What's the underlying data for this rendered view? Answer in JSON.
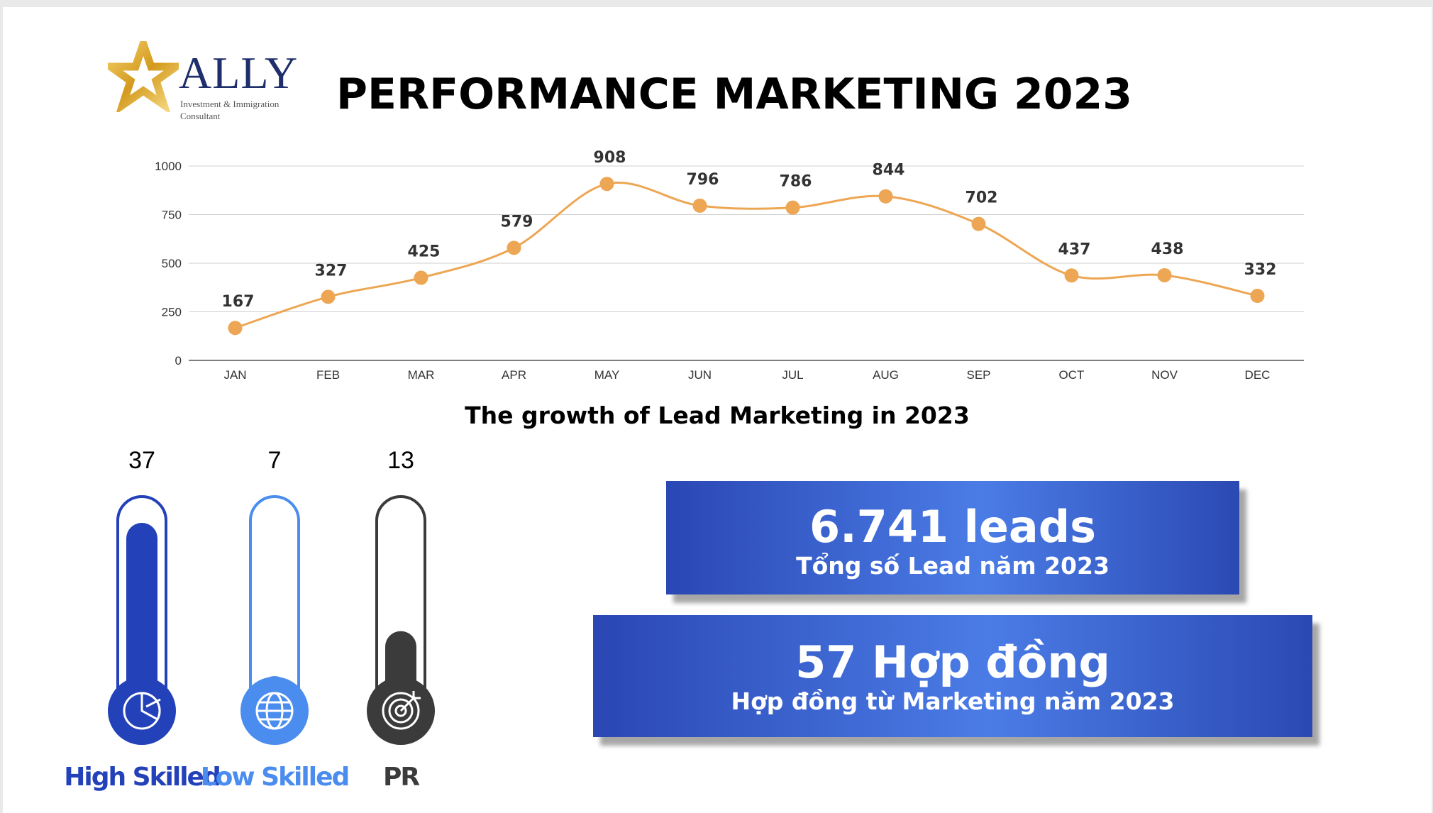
{
  "logo": {
    "name": "ALLY",
    "tagline": "Investment & Immigration Consultant",
    "colors": {
      "navy": "#1f2f6b",
      "gold": "#d9a520"
    }
  },
  "page_title": "PERFORMANCE MARKETING 2023",
  "chart_data": {
    "type": "line",
    "title": "The growth of Lead Marketing in 2023",
    "categories": [
      "JAN",
      "FEB",
      "MAR",
      "APR",
      "MAY",
      "JUN",
      "JUL",
      "AUG",
      "SEP",
      "OCT",
      "NOV",
      "DEC"
    ],
    "values": [
      167,
      327,
      425,
      579,
      908,
      796,
      786,
      844,
      702,
      437,
      438,
      332
    ],
    "ylim": [
      0,
      1000
    ],
    "yticks": [
      0,
      250,
      500,
      750,
      1000
    ],
    "grid": true,
    "color": "#eda653"
  },
  "thermometers": [
    {
      "value": "37",
      "label": "High Skilled",
      "level": 0.92,
      "icon": "pie-chart-icon",
      "color": "#2341b9"
    },
    {
      "value": "7",
      "label": "Low Skilled",
      "level": 0.17,
      "icon": "globe-icon",
      "color": "#4a8def"
    },
    {
      "value": "13",
      "label": "PR",
      "level": 0.39,
      "icon": "target-icon",
      "color": "#3b3b3b"
    }
  ],
  "banners": [
    {
      "big": "6.741 leads",
      "small": "Tổng số Lead năm 2023"
    },
    {
      "big": "57 Hợp đồng",
      "small": "Hợp đồng từ Marketing năm 2023"
    }
  ]
}
